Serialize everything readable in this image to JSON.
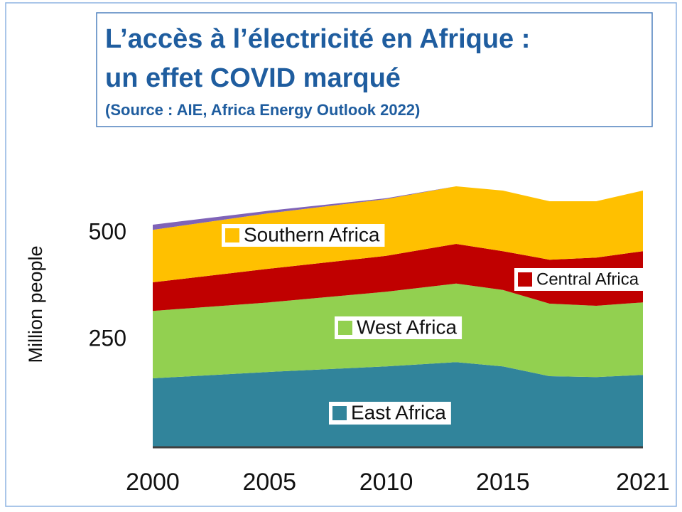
{
  "chart_data": {
    "type": "stacked-area",
    "title": [
      "L’accès à l’électricité en Afrique :",
      "un effet COVID marqué"
    ],
    "subtitle": "(Source : AIE, Africa Energy Outlook 2022)",
    "y_label": "Million people",
    "x": [
      2000,
      2005,
      2010,
      2013,
      2015,
      2017,
      2019,
      2021
    ],
    "xlim": [
      2000,
      2021
    ],
    "xticks": [
      2000,
      2005,
      2010,
      2015,
      2021
    ],
    "ylim": [
      0,
      650
    ],
    "yticks": [
      250,
      500
    ],
    "series": [
      {
        "name": "East Africa",
        "color": "#31849b",
        "values": [
          160,
          175,
          188,
          198,
          188,
          165,
          163,
          168
        ]
      },
      {
        "name": "West Africa",
        "color": "#92d050",
        "values": [
          158,
          163,
          175,
          184,
          179,
          170,
          167,
          170
        ]
      },
      {
        "name": "Central Africa",
        "color": "#c00000",
        "values": [
          67,
          79,
          84,
          93,
          91,
          103,
          113,
          120
        ]
      },
      {
        "name": "Southern Africa",
        "color": "#ffc000",
        "values": [
          123,
          130,
          133,
          135,
          142,
          137,
          132,
          142
        ]
      },
      {
        "name": null,
        "color": "#7f63b8",
        "values": [
          12,
          6,
          2,
          0,
          0,
          0,
          0,
          0
        ]
      }
    ]
  }
}
